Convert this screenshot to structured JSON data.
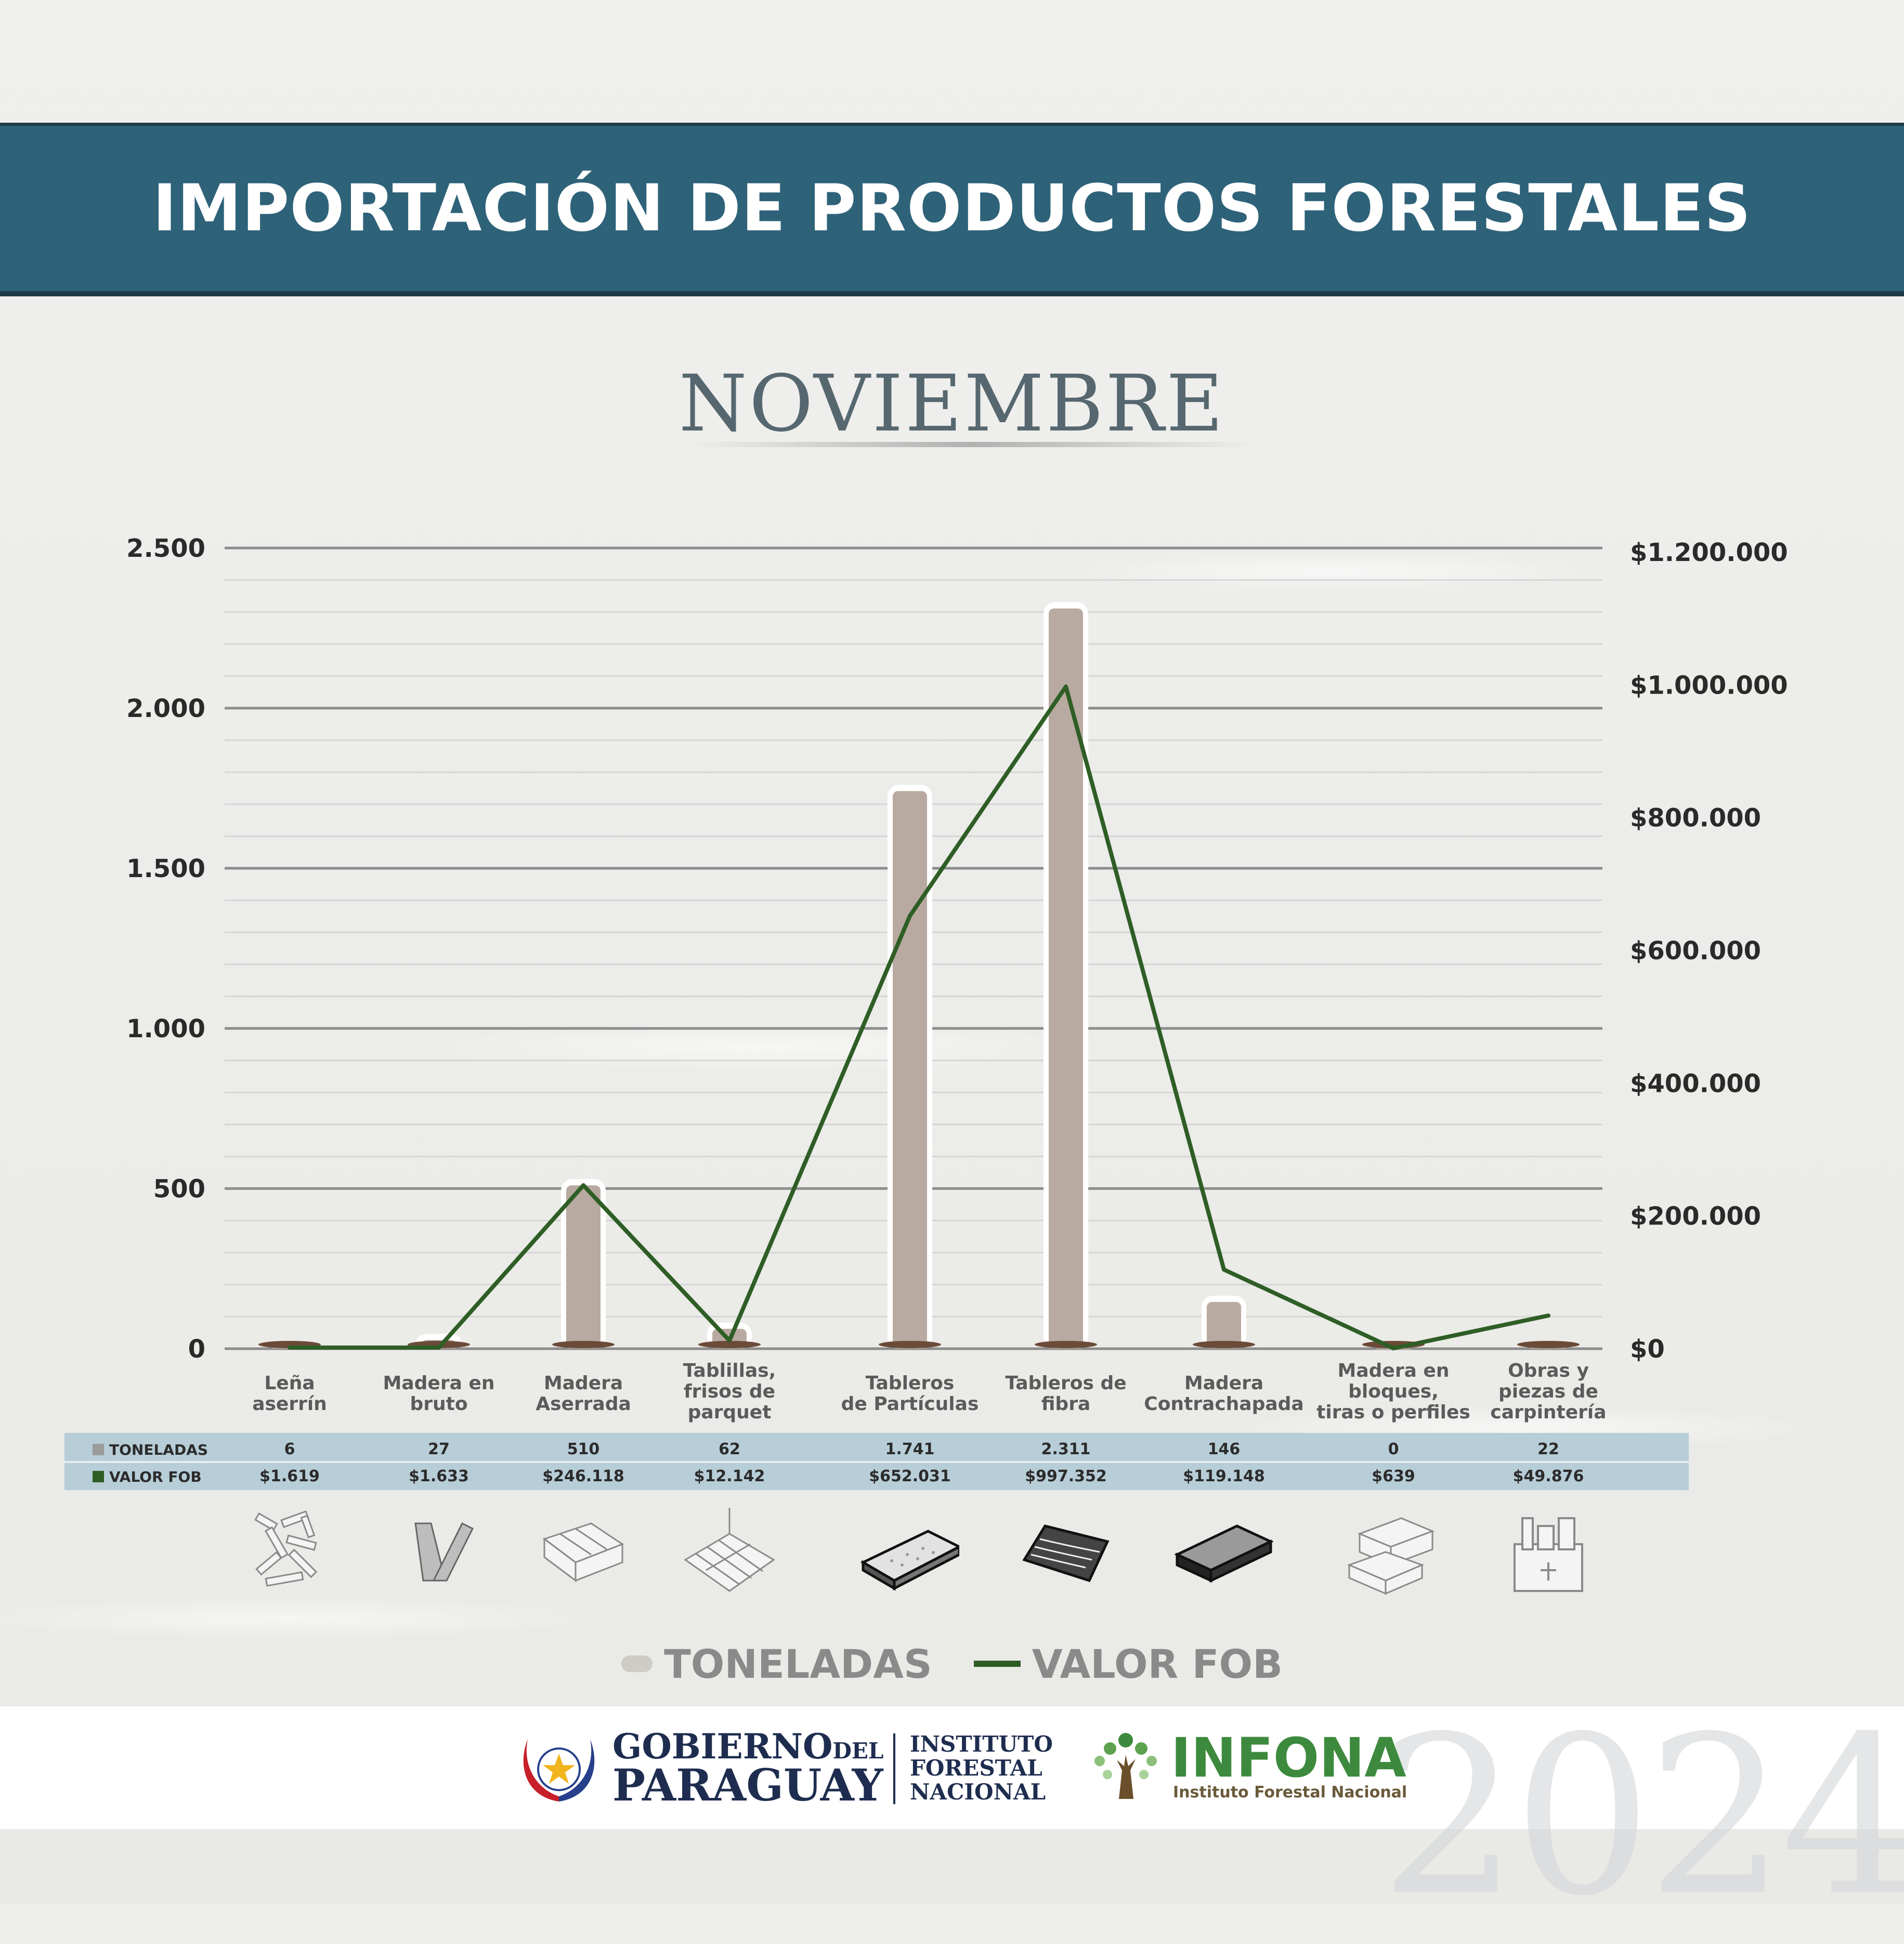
{
  "header": {
    "title": "IMPORTACIÓN DE PRODUCTOS FORESTALES"
  },
  "month": "NOVIEMBRE",
  "chart_data": {
    "type": "bar",
    "categories": [
      "Leña aserrín",
      "Madera en bruto",
      "Madera Aserrada",
      "Tablillas, frisos de parquet",
      "Tableros de Partículas",
      "Tableros de fibra",
      "Madera Contrachapada",
      "Madera en bloques, tiras o perfiles",
      "Obras y piezas de carpintería"
    ],
    "category_lines": [
      [
        "Leña",
        "aserrín"
      ],
      [
        "Madera en",
        "bruto"
      ],
      [
        "Madera",
        "Aserrada"
      ],
      [
        "Tablillas,",
        "frisos de",
        "parquet"
      ],
      [
        "Tableros",
        "de Partículas"
      ],
      [
        "Tableros de",
        "fibra"
      ],
      [
        "Madera",
        "Contrachapada"
      ],
      [
        "Madera en",
        "bloques,",
        "tiras o perfiles"
      ],
      [
        "Obras y",
        "piezas de",
        "carpintería"
      ]
    ],
    "series": [
      {
        "name": "TONELADAS",
        "type": "bar",
        "axis": "left",
        "color": "#b8aaa0",
        "values": [
          6,
          27,
          510,
          62,
          1741,
          2311,
          146,
          0,
          22
        ]
      },
      {
        "name": "VALOR FOB",
        "type": "line",
        "axis": "right",
        "color": "#2e5e25",
        "values": [
          1619,
          1633,
          246118,
          12142,
          652031,
          997352,
          119148,
          639,
          49876
        ]
      }
    ],
    "left_axis": {
      "ylim": [
        0,
        2500
      ],
      "ticks": [
        0,
        500,
        1000,
        1500,
        2000,
        2500
      ],
      "tick_labels": [
        "0",
        "500",
        "1.000",
        "1.500",
        "2.000",
        "2.500"
      ]
    },
    "right_axis": {
      "ylim": [
        0,
        1200000
      ],
      "ticks": [
        0,
        200000,
        400000,
        600000,
        800000,
        1000000,
        1200000
      ],
      "tick_labels": [
        "$0",
        "$200.000",
        "$400.000",
        "$600.000",
        "$800.000",
        "$1.000.000",
        "$1.200.000"
      ]
    },
    "grid": true,
    "legend": "bottom"
  },
  "table": {
    "row_ton_label": "TONELADAS",
    "row_fob_label": "VALOR FOB",
    "ton": [
      "6",
      "27",
      "510",
      "62",
      "1.741",
      "2.311",
      "146",
      "0",
      "22"
    ],
    "fob": [
      "$1.619",
      "$1.633",
      "$246.118",
      "$12.142",
      "$652.031",
      "$997.352",
      "$119.148",
      "$639",
      "$49.876"
    ],
    "swatch_ton": "#9b9b9b",
    "swatch_fob": "#2e5e25"
  },
  "icons": [
    "wood-chips-icon",
    "raw-wood-icon",
    "sawn-wood-icon",
    "parquet-icon",
    "particle-board-icon",
    "fiber-board-icon",
    "plywood-icon",
    "wood-blocks-icon",
    "carpentry-icon"
  ],
  "legend": {
    "ton": "TONELADAS",
    "fob": "VALOR FOB"
  },
  "footer": {
    "gov_line1": "GOBIERNO",
    "gov_line1_small": "DEL",
    "gov_line2": "PARAGUAY",
    "inst_line1": "INSTITUTO",
    "inst_line2": "FORESTAL",
    "inst_line3": "NACIONAL",
    "infona": "INFONA",
    "infona_sub": "Instituto Forestal Nacional",
    "year": "2024"
  }
}
